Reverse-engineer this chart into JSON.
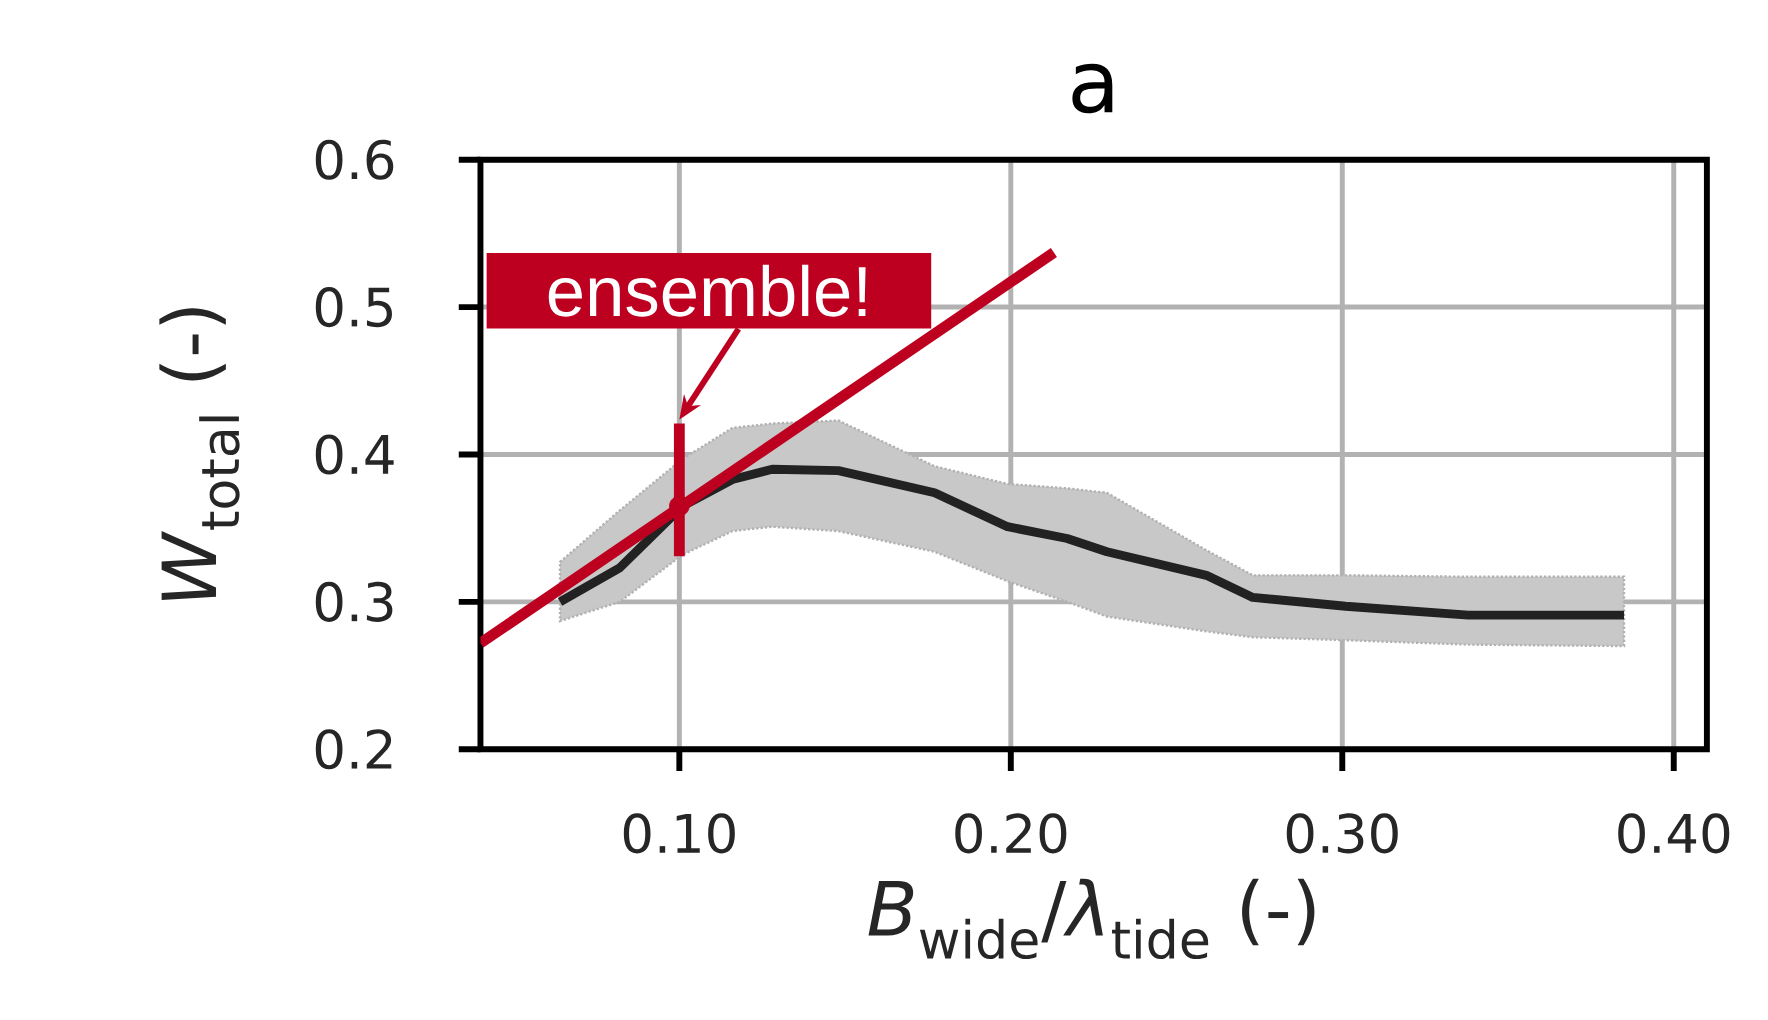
{
  "chart_data": {
    "type": "line",
    "title": "a",
    "xlabel": "*B*$_{wide}$/*λ*$_{tide}$ (-)",
    "ylabel": "*W*$_{total}$ (-)",
    "xlim": [
      0.04,
      0.41
    ],
    "ylim": [
      0.2,
      0.6
    ],
    "xticks": [
      {
        "value": 0.1,
        "label": "0.10"
      },
      {
        "value": 0.2,
        "label": "0.20"
      },
      {
        "value": 0.3,
        "label": "0.30"
      },
      {
        "value": 0.4,
        "label": "0.40"
      }
    ],
    "yticks": [
      0.2,
      0.3,
      0.4,
      0.5,
      0.6
    ],
    "grid": true,
    "series": [
      {
        "color": "#222222",
        "x": [
          0.064,
          0.082,
          0.101,
          0.116,
          0.128,
          0.148,
          0.177,
          0.199,
          0.217,
          0.229,
          0.259,
          0.273,
          0.301,
          0.338,
          0.385
        ],
        "values": [
          0.3,
          0.323,
          0.365,
          0.383,
          0.39,
          0.389,
          0.374,
          0.351,
          0.343,
          0.334,
          0.318,
          0.303,
          0.297,
          0.291,
          0.291
        ],
        "upper": [
          0.327,
          0.362,
          0.397,
          0.418,
          0.421,
          0.423,
          0.392,
          0.38,
          0.377,
          0.374,
          0.335,
          0.318,
          0.318,
          0.317,
          0.317
        ],
        "lower": [
          0.287,
          0.3,
          0.332,
          0.348,
          0.351,
          0.348,
          0.334,
          0.314,
          0.3,
          0.29,
          0.28,
          0.276,
          0.274,
          0.271,
          0.27
        ]
      },
      {
        "type": "line",
        "color": "#be0020",
        "x": [
          0.04,
          0.213
        ],
        "values": [
          0.272,
          0.537
        ]
      },
      {
        "type": "line",
        "color": "#be0020",
        "x": [
          0.1,
          0.1
        ],
        "values": [
          0.331,
          0.421
        ]
      },
      {
        "type": "scatter",
        "color": "#be0020",
        "marker": "circle",
        "x": [
          0.1
        ],
        "values": [
          0.365
        ]
      }
    ],
    "annotations": [
      {
        "text": "ensemble!",
        "x": 0.1,
        "y": 0.421
      }
    ]
  }
}
